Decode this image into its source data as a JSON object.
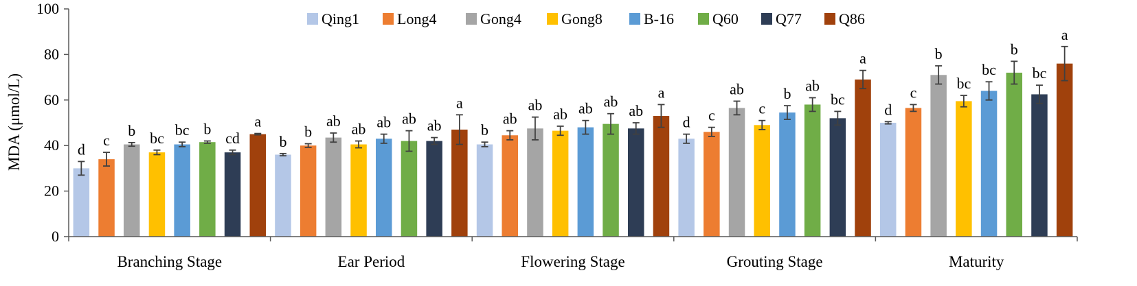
{
  "chart_data": {
    "type": "bar",
    "title": "",
    "xlabel": "",
    "ylabel": "MDA (μmol/L)",
    "ylim": [
      0,
      100
    ],
    "yticks": [
      0,
      20,
      40,
      60,
      80,
      100
    ],
    "grid": false,
    "legend_position": "top-center",
    "categories": [
      "Branching Stage",
      "Ear Period",
      "Flowering Stage",
      "Grouting Stage",
      "Maturity"
    ],
    "series": [
      {
        "name": "Qing1",
        "color": "#B4C7E7",
        "values": [
          30,
          36,
          40.5,
          43,
          50
        ],
        "errors": [
          3,
          0.5,
          1,
          2,
          0.5
        ],
        "labels": [
          "d",
          "b",
          "b",
          "d",
          "d"
        ]
      },
      {
        "name": "Long4",
        "color": "#ED7D31",
        "values": [
          34,
          40,
          44.5,
          46,
          56.5
        ],
        "errors": [
          3,
          0.8,
          2,
          2,
          1.5
        ],
        "labels": [
          "c",
          "b",
          "ab",
          "c",
          "c"
        ]
      },
      {
        "name": "Gong4",
        "color": "#A5A5A5",
        "values": [
          40.5,
          43.5,
          47.5,
          56.5,
          71
        ],
        "errors": [
          0.8,
          2,
          5,
          3,
          4
        ],
        "labels": [
          "b",
          "ab",
          "ab",
          "ab",
          "b"
        ]
      },
      {
        "name": "Gong8",
        "color": "#FFC000",
        "values": [
          37,
          40.5,
          46.5,
          49,
          59.5
        ],
        "errors": [
          1,
          1.5,
          2,
          2,
          2.5
        ],
        "labels": [
          "bc",
          "ab",
          "ab",
          "c",
          "bc"
        ]
      },
      {
        "name": "B-16",
        "color": "#5B9BD5",
        "values": [
          40.5,
          43,
          48,
          54.5,
          64
        ],
        "errors": [
          1,
          2,
          3,
          3,
          4
        ],
        "labels": [
          "bc",
          "ab",
          "ab",
          "b",
          "bc"
        ]
      },
      {
        "name": "Q60",
        "color": "#70AD47",
        "values": [
          41.5,
          42,
          49.5,
          58,
          72
        ],
        "errors": [
          0.5,
          4.5,
          4.5,
          3,
          5
        ],
        "labels": [
          "b",
          "ab",
          "ab",
          "ab",
          "b"
        ]
      },
      {
        "name": "Q77",
        "color": "#2E3D55",
        "values": [
          37,
          42,
          47.5,
          52,
          62.5
        ],
        "errors": [
          1,
          1.5,
          2.5,
          3,
          4
        ],
        "labels": [
          "cd",
          "ab",
          "ab",
          "bc",
          "bc"
        ]
      },
      {
        "name": "Q86",
        "color": "#A0410C",
        "values": [
          45,
          47,
          53,
          69,
          76
        ],
        "errors": [
          0.3,
          6.5,
          5,
          4,
          7.5
        ],
        "labels": [
          "a",
          "a",
          "a",
          "a",
          "a"
        ]
      }
    ]
  }
}
